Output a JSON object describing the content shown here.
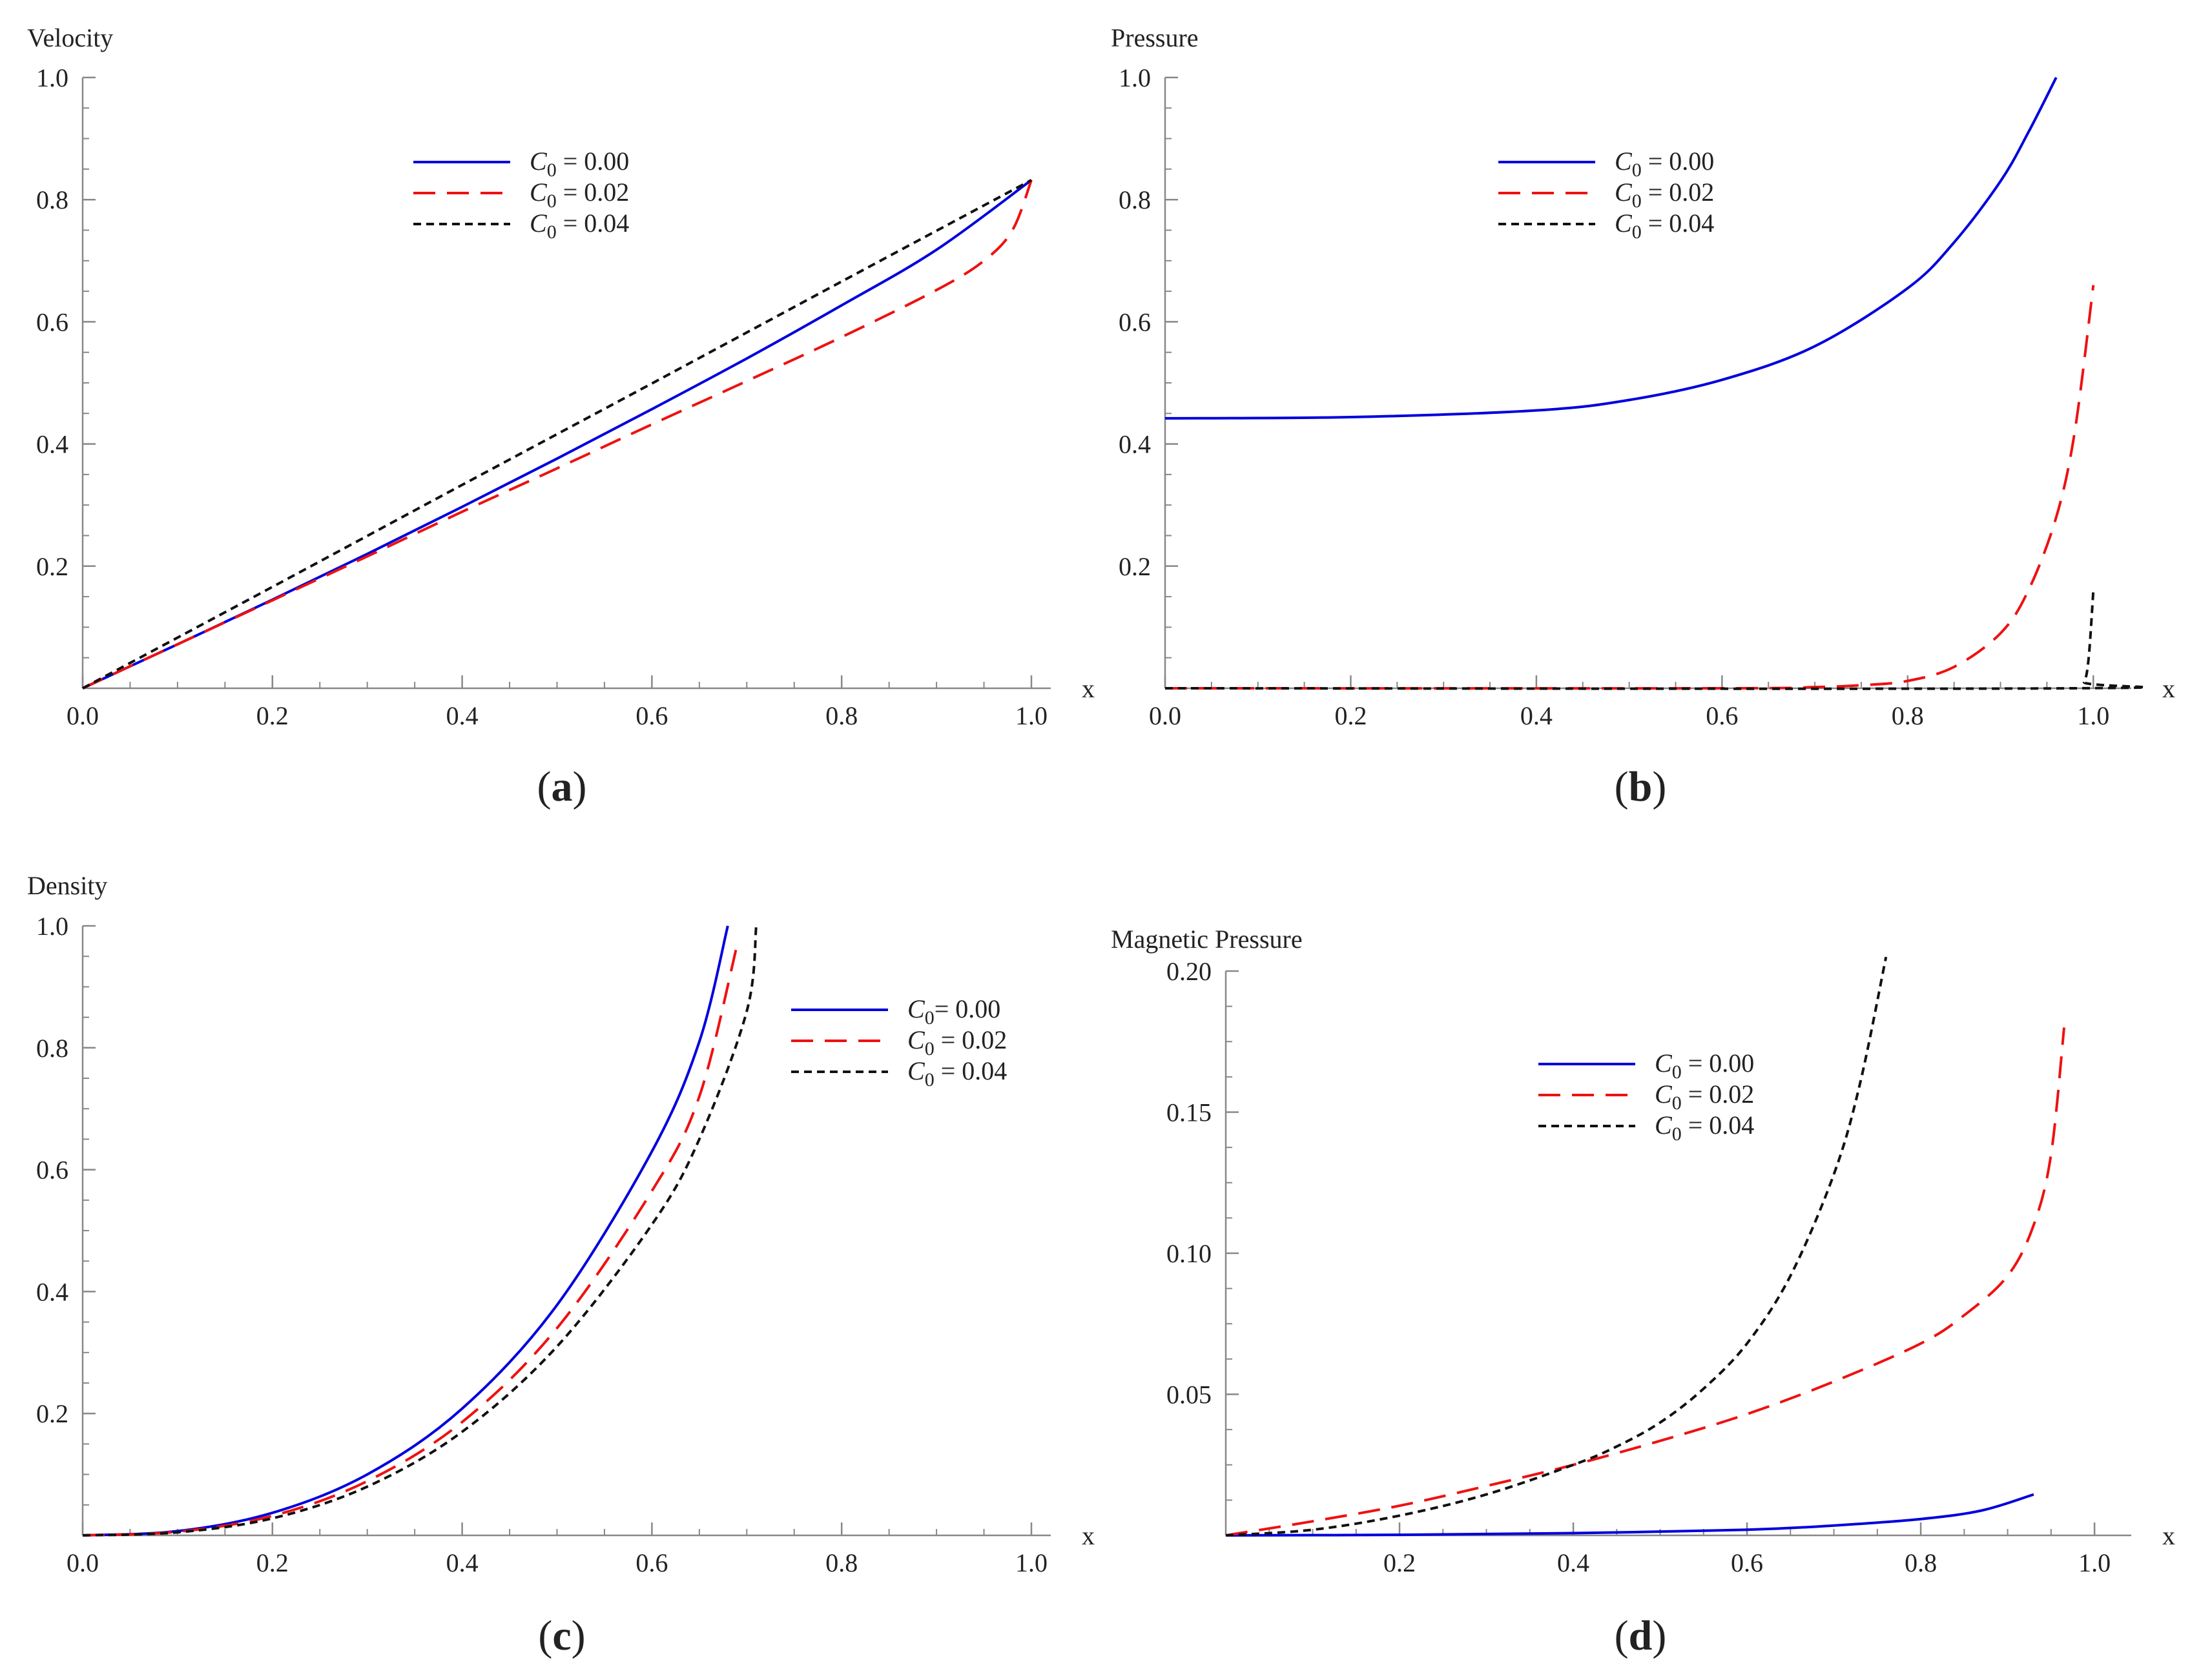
{
  "figure": {
    "panel_labels": {
      "open": "(",
      "close": ")"
    }
  },
  "chart_data": [
    {
      "id": "a",
      "panel_label": "a",
      "type": "line",
      "title": "Velocity",
      "xlabel": "x",
      "ylabel": "Velocity",
      "xlim": [
        0,
        1
      ],
      "ylim": [
        0,
        1
      ],
      "xticks": [
        0.0,
        0.2,
        0.4,
        0.6,
        0.8,
        1.0
      ],
      "xtick_labels": [
        "0.0",
        "0.2",
        "0.4",
        "0.6",
        "0.8",
        "1.0"
      ],
      "yticks": [
        0.2,
        0.4,
        0.6,
        0.8,
        1.0
      ],
      "ytick_labels": [
        "0.2",
        "0.4",
        "0.6",
        "0.8",
        "1.0"
      ],
      "legend_position": "top-center",
      "series": [
        {
          "name": "C0 = 0.00",
          "legend": {
            "var": "C",
            "sub": "0",
            "rest": " = 0.00"
          },
          "color": "#0000dd",
          "style": "solid",
          "x": [
            0,
            0.1,
            0.2,
            0.3,
            0.4,
            0.5,
            0.6,
            0.7,
            0.8,
            0.9,
            1.0
          ],
          "y": [
            0,
            0.072,
            0.145,
            0.22,
            0.297,
            0.376,
            0.457,
            0.54,
            0.627,
            0.718,
            0.832
          ]
        },
        {
          "name": "C0 = 0.02",
          "legend": {
            "var": "C",
            "sub": "0",
            "rest": " = 0.02"
          },
          "color": "#ee1111",
          "style": "dashed",
          "x": [
            0,
            0.1,
            0.2,
            0.3,
            0.4,
            0.5,
            0.6,
            0.7,
            0.8,
            0.9,
            0.95,
            0.98,
            1.0
          ],
          "y": [
            0,
            0.072,
            0.144,
            0.216,
            0.289,
            0.36,
            0.432,
            0.503,
            0.575,
            0.652,
            0.7,
            0.75,
            0.832
          ]
        },
        {
          "name": "C0 = 0.04",
          "legend": {
            "var": "C",
            "sub": "0",
            "rest": " = 0.04"
          },
          "color": "#111111",
          "style": "dotted",
          "x": [
            0,
            0.2,
            0.4,
            0.6,
            0.8,
            1.0
          ],
          "y": [
            0,
            0.166,
            0.333,
            0.499,
            0.666,
            0.832
          ]
        }
      ]
    },
    {
      "id": "b",
      "panel_label": "b",
      "type": "line",
      "title": "Pressure",
      "xlabel": "x",
      "ylabel": "Pressure",
      "xlim": [
        0,
        1.02
      ],
      "ylim": [
        0,
        1
      ],
      "xticks": [
        0.0,
        0.2,
        0.4,
        0.6,
        0.8,
        1.0
      ],
      "xtick_labels": [
        "0.0",
        "0.2",
        "0.4",
        "0.6",
        "0.8",
        "1.0"
      ],
      "yticks": [
        0.2,
        0.4,
        0.6,
        0.8,
        1.0
      ],
      "ytick_labels": [
        "0.2",
        "0.4",
        "0.6",
        "0.8",
        "1.0"
      ],
      "legend_position": "top-center",
      "series": [
        {
          "name": "C0 = 0.00",
          "legend": {
            "var": "C",
            "sub": "0",
            "rest": " = 0.00"
          },
          "color": "#0000dd",
          "style": "solid",
          "x": [
            0,
            0.2,
            0.4,
            0.5,
            0.6,
            0.7,
            0.8,
            0.85,
            0.9,
            0.93,
            0.96
          ],
          "y": [
            0.442,
            0.444,
            0.455,
            0.472,
            0.505,
            0.56,
            0.655,
            0.73,
            0.83,
            0.91,
            1.0
          ]
        },
        {
          "name": "C0 = 0.02",
          "legend": {
            "var": "C",
            "sub": "0",
            "rest": " = 0.02"
          },
          "color": "#ee1111",
          "style": "dashed",
          "x": [
            0,
            0.6,
            0.7,
            0.75,
            0.8,
            0.85,
            0.9,
            0.93,
            0.96,
            0.98,
            1.0
          ],
          "y": [
            0,
            0.0,
            0.002,
            0.005,
            0.012,
            0.035,
            0.09,
            0.16,
            0.28,
            0.42,
            0.66
          ]
        },
        {
          "name": "C0 = 0.04",
          "legend": {
            "var": "C",
            "sub": "0",
            "rest": " = 0.04"
          },
          "color": "#111111",
          "style": "dotted",
          "x": [
            0,
            0.98,
            0.99,
            0.995,
            1.0
          ],
          "y": [
            0,
            0.0,
            0.01,
            0.05,
            0.16
          ]
        }
      ]
    },
    {
      "id": "c",
      "panel_label": "c",
      "type": "line",
      "title": "Density",
      "xlabel": "x",
      "ylabel": "Density",
      "xlim": [
        0,
        1
      ],
      "ylim": [
        0,
        1
      ],
      "xticks": [
        0.0,
        0.2,
        0.4,
        0.6,
        0.8,
        1.0
      ],
      "xtick_labels": [
        "0.0",
        "0.2",
        "0.4",
        "0.6",
        "0.8",
        "1.0"
      ],
      "yticks": [
        0.2,
        0.4,
        0.6,
        0.8,
        1.0
      ],
      "ytick_labels": [
        "0.2",
        "0.4",
        "0.6",
        "0.8",
        "1.0"
      ],
      "legend_position": "top-right",
      "series": [
        {
          "name": "C0= 0.00",
          "legend": {
            "var": "C",
            "sub": "0",
            "rest": "= 0.00"
          },
          "color": "#0000dd",
          "style": "solid",
          "x": [
            0,
            0.1,
            0.2,
            0.3,
            0.4,
            0.5,
            0.6,
            0.65,
            0.68
          ],
          "y": [
            0,
            0.007,
            0.037,
            0.1,
            0.208,
            0.378,
            0.63,
            0.81,
            1.0
          ]
        },
        {
          "name": "C0 = 0.02",
          "legend": {
            "var": "C",
            "sub": "0",
            "rest": " = 0.02"
          },
          "color": "#ee1111",
          "style": "dashed",
          "x": [
            0,
            0.1,
            0.2,
            0.3,
            0.4,
            0.5,
            0.6,
            0.65,
            0.69
          ],
          "y": [
            0,
            0.006,
            0.032,
            0.089,
            0.186,
            0.34,
            0.565,
            0.72,
            0.97
          ]
        },
        {
          "name": "C0 = 0.04",
          "legend": {
            "var": "C",
            "sub": "0",
            "rest": " = 0.04"
          },
          "color": "#111111",
          "style": "dotted",
          "x": [
            0,
            0.1,
            0.2,
            0.3,
            0.4,
            0.5,
            0.6,
            0.65,
            0.7,
            0.71
          ],
          "y": [
            0,
            0.005,
            0.028,
            0.08,
            0.17,
            0.31,
            0.51,
            0.65,
            0.86,
            1.0
          ]
        }
      ]
    },
    {
      "id": "d",
      "panel_label": "d",
      "type": "line",
      "title": "Magnetic Pressure",
      "xlabel": "x",
      "ylabel": "Magnetic Pressure",
      "xlim": [
        0,
        1.02
      ],
      "ylim": [
        0,
        0.2
      ],
      "xticks": [
        0.2,
        0.4,
        0.6,
        0.8,
        1.0
      ],
      "xtick_labels": [
        "0.2",
        "0.4",
        "0.6",
        "0.8",
        "1.0"
      ],
      "yticks": [
        0.05,
        0.1,
        0.15,
        0.2
      ],
      "ytick_labels": [
        "0.05",
        "0.10",
        "0.15",
        "0.20"
      ],
      "legend_position": "top-center",
      "series": [
        {
          "name": "C0 = 0.00",
          "legend": {
            "var": "C",
            "sub": "0",
            "rest": "  = 0.00"
          },
          "color": "#0000dd",
          "style": "solid",
          "x": [
            0,
            0.2,
            0.4,
            0.6,
            0.7,
            0.8,
            0.87,
            0.93
          ],
          "y": [
            0,
            0.0002,
            0.0008,
            0.002,
            0.0035,
            0.0058,
            0.0088,
            0.0145
          ]
        },
        {
          "name": "C0 = 0.02",
          "legend": {
            "var": "C",
            "sub": "0",
            "rest": "  = 0.02"
          },
          "color": "#ee1111",
          "style": "dashed",
          "x": [
            0,
            0.1,
            0.2,
            0.3,
            0.4,
            0.5,
            0.6,
            0.7,
            0.8,
            0.85,
            0.9,
            0.93,
            0.95,
            0.965
          ],
          "y": [
            0,
            0.005,
            0.0105,
            0.0175,
            0.025,
            0.0335,
            0.043,
            0.0545,
            0.068,
            0.078,
            0.092,
            0.11,
            0.135,
            0.18
          ]
        },
        {
          "name": "C0 = 0.04",
          "legend": {
            "var": "C",
            "sub": "0",
            "rest": "  = 0.04"
          },
          "color": "#111111",
          "style": "dotted",
          "x": [
            0,
            0.1,
            0.2,
            0.3,
            0.4,
            0.45,
            0.5,
            0.55,
            0.6,
            0.65,
            0.7,
            0.73,
            0.76
          ],
          "y": [
            0,
            0.002,
            0.007,
            0.0145,
            0.025,
            0.0315,
            0.04,
            0.052,
            0.068,
            0.092,
            0.128,
            0.16,
            0.205
          ]
        }
      ]
    }
  ]
}
